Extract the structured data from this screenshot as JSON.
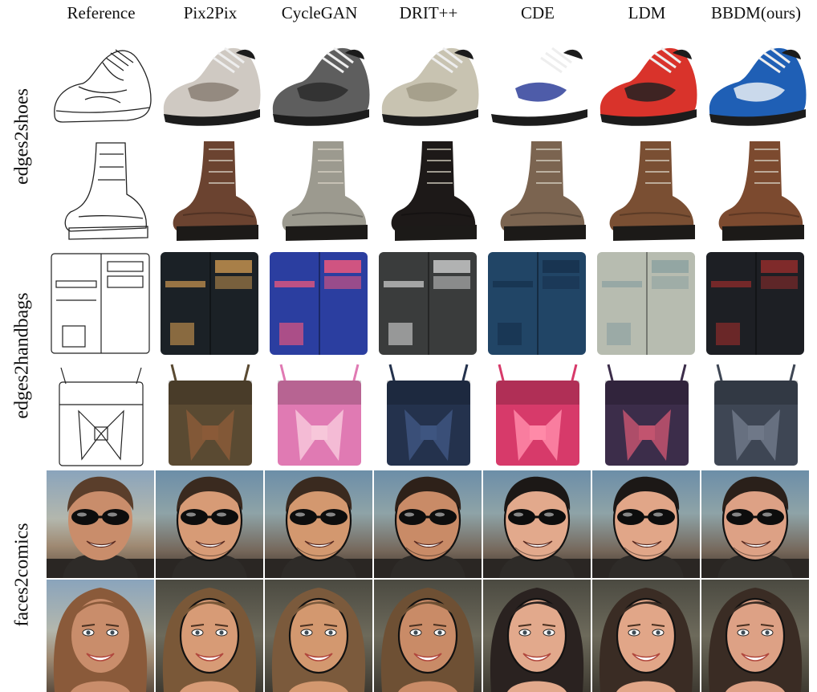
{
  "figure": {
    "columns": [
      "Reference",
      "Pix2Pix",
      "CycleGAN",
      "DRIT++",
      "CDE",
      "LDM",
      "BBDM(ours)"
    ],
    "rows": [
      "edges2shoes",
      "edges2handbags",
      "faces2comics"
    ]
  },
  "colors": {
    "shoe1": [
      "#cfc9c2",
      "#5e5e5e",
      "#c8c3b1",
      "#ffffff",
      "#d9332b",
      "#1f5fb5"
    ],
    "shoe1_accent": [
      "#8a7f74",
      "#2c2c2c",
      "#a09a86",
      "#2f3f9a",
      "#222222",
      "#e9eef5"
    ],
    "boot": [
      "#6b4330",
      "#9c9a8f",
      "#1d1918",
      "#7b6450",
      "#7a4f33",
      "#7c4a2f"
    ],
    "wallet": [
      "#1b2126",
      "#2b3ea0",
      "#3a3c3c",
      "#214566",
      "#b7bcb0",
      "#1d1f24"
    ],
    "wallet_accent": [
      "#b88a4c",
      "#e2567d",
      "#bfbfbf",
      "#17324f",
      "#8fa3a2",
      "#8b2b2b"
    ],
    "bag": [
      "#5a4a32",
      "#e07ab3",
      "#24324d",
      "#d73a6a",
      "#3c2d4a",
      "#3e4654"
    ],
    "bag_accent": [
      "#8a5a38",
      "#f7c7da",
      "#3e5580",
      "#ff8aa8",
      "#c2546f",
      "#6f7888"
    ],
    "skin": [
      "#c98d6b",
      "#d79b76",
      "#d3986f",
      "#c98b67",
      "#e2a98c",
      "#e1a688",
      "#dda185"
    ],
    "hair_m": [
      "#5a3e2b",
      "#3a2a1f",
      "#3a2a1f",
      "#2e2119",
      "#1c1816",
      "#1c1816",
      "#2a201a"
    ],
    "hair_f": [
      "#8a5a3a",
      "#7a5838",
      "#7b5a3c",
      "#6e5034",
      "#2a2220",
      "#3a2c24",
      "#3a2c24"
    ]
  }
}
